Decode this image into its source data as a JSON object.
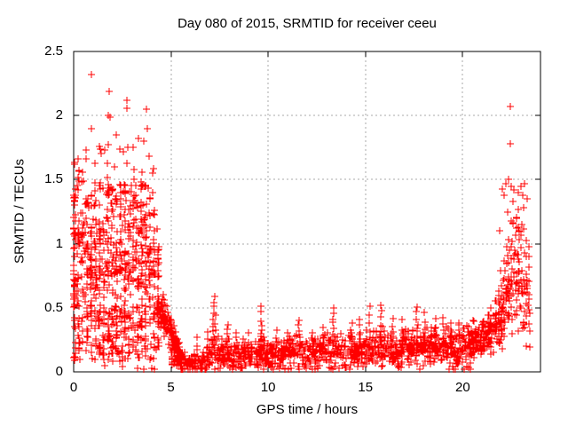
{
  "chart_data": {
    "type": "scatter",
    "title": "Day 080 of 2015, SRMTID for receiver ceeu",
    "xlabel": "GPS time / hours",
    "ylabel": "SRMTID / TECUs",
    "xlim": [
      0,
      24
    ],
    "ylim": [
      0,
      2.5
    ],
    "xticks": [
      0,
      5,
      10,
      15,
      20
    ],
    "xtick_labels": [
      "0",
      "5",
      "10",
      "15",
      "20"
    ],
    "yticks": [
      0,
      0.5,
      1,
      1.5,
      2,
      2.5
    ],
    "ytick_labels": [
      "0",
      "0.5",
      "1",
      "1.5",
      "2",
      "2.5"
    ],
    "grid": true,
    "grid_color": "#a8a8a8",
    "axis_color": "#000000",
    "marker": {
      "glyph": "plus",
      "color": "#ff0000",
      "size": 9
    },
    "data_description": "SRMTID scatter: turbulent 0-4.4h (0.1-1.5 TECU, peaks to 2.32), decay funnel 4.3-5.6h, quiet band 5-20.6h (~0.05-0.3 with spikes to 0.5-0.59), rise 20.5-23.4h to ~0.8 mean with tops near 1.5 and outliers 2.07/1.78 at 22.5h",
    "generator": {
      "seed": 20150080,
      "storm": {
        "count": 780,
        "x_range": [
          0.0,
          4.38
        ],
        "column_step": 0.215,
        "column_jitter": 0.055,
        "column_frac": 0.6,
        "mix_low": [
          0.08,
          0.52
        ],
        "p_low": 0.3,
        "mid_base": 0.35,
        "mid_span": 0.9,
        "p_mid": 0.48,
        "high1": [
          1.08,
          1.5
        ],
        "p_high1": 0.19,
        "high2": [
          1.5,
          1.82
        ]
      },
      "zero_column": {
        "count": 24,
        "x_range": [
          0.0,
          0.08
        ],
        "y_range": [
          0.55,
          1.45
        ]
      },
      "funnel": {
        "count": 150,
        "x_range": [
          4.3,
          5.55
        ],
        "mean_start": 0.55,
        "mean_end": 0.12,
        "spread_start": 0.18,
        "spread_end": 0.05,
        "floor": 0.03
      },
      "quiet": {
        "count": 1150,
        "x_range": [
          5.0,
          20.6
        ],
        "floor": 0.02,
        "mean_profile": [
          [
            5.0,
            0.11
          ],
          [
            5.5,
            0.08
          ],
          [
            6.0,
            0.07
          ],
          [
            6.6,
            0.08
          ],
          [
            7.0,
            0.11
          ],
          [
            7.3,
            0.16
          ],
          [
            7.7,
            0.12
          ],
          [
            8.1,
            0.15
          ],
          [
            8.6,
            0.13
          ],
          [
            9.1,
            0.12
          ],
          [
            9.6,
            0.15
          ],
          [
            10.1,
            0.12
          ],
          [
            10.6,
            0.13
          ],
          [
            11.1,
            0.14
          ],
          [
            11.6,
            0.15
          ],
          [
            12.1,
            0.13
          ],
          [
            12.6,
            0.15
          ],
          [
            13.1,
            0.16
          ],
          [
            13.5,
            0.18
          ],
          [
            14.0,
            0.17
          ],
          [
            14.5,
            0.16
          ],
          [
            15.0,
            0.17
          ],
          [
            15.5,
            0.17
          ],
          [
            16.0,
            0.18
          ],
          [
            16.5,
            0.17
          ],
          [
            17.0,
            0.18
          ],
          [
            17.5,
            0.19
          ],
          [
            18.0,
            0.18
          ],
          [
            18.5,
            0.18
          ],
          [
            19.0,
            0.18
          ],
          [
            19.5,
            0.19
          ],
          [
            20.0,
            0.19
          ],
          [
            20.6,
            0.22
          ]
        ],
        "spikes": [
          [
            6.35,
            0.27,
            4
          ],
          [
            6.9,
            0.3,
            4
          ],
          [
            7.2,
            0.55,
            9
          ],
          [
            7.28,
            0.44,
            5
          ],
          [
            7.9,
            0.36,
            6
          ],
          [
            8.35,
            0.3,
            4
          ],
          [
            9.0,
            0.3,
            3
          ],
          [
            9.65,
            0.5,
            8
          ],
          [
            10.4,
            0.32,
            4
          ],
          [
            11.0,
            0.3,
            3
          ],
          [
            11.6,
            0.42,
            6
          ],
          [
            12.3,
            0.3,
            4
          ],
          [
            12.85,
            0.35,
            4
          ],
          [
            13.35,
            0.5,
            8
          ],
          [
            14.3,
            0.38,
            5
          ],
          [
            14.7,
            0.42,
            5
          ],
          [
            15.2,
            0.5,
            6
          ],
          [
            15.8,
            0.52,
            7
          ],
          [
            16.4,
            0.42,
            5
          ],
          [
            16.9,
            0.4,
            4
          ],
          [
            17.65,
            0.52,
            7
          ],
          [
            18.05,
            0.45,
            5
          ],
          [
            18.6,
            0.4,
            4
          ],
          [
            19.0,
            0.42,
            5
          ],
          [
            19.4,
            0.36,
            5
          ],
          [
            19.8,
            0.38,
            4
          ],
          [
            20.3,
            0.35,
            4
          ]
        ]
      },
      "evening": {
        "count": 310,
        "x_range": [
          20.5,
          23.45
        ],
        "floor": 0.05,
        "column_step": 0.13,
        "column_jitter": 0.04,
        "column_frac": 0.55,
        "mean_profile": [
          [
            20.5,
            0.22
          ],
          [
            20.9,
            0.25
          ],
          [
            21.3,
            0.3
          ],
          [
            21.7,
            0.38
          ],
          [
            22.0,
            0.5
          ],
          [
            22.3,
            0.65
          ],
          [
            22.6,
            0.8
          ],
          [
            22.9,
            0.82
          ],
          [
            23.1,
            0.78
          ],
          [
            23.45,
            0.65
          ]
        ]
      },
      "extra_points": [
        [
          0.91,
          2.32
        ],
        [
          1.83,
          2.19
        ],
        [
          2.74,
          2.12
        ],
        [
          2.74,
          2.06
        ],
        [
          3.76,
          2.05
        ],
        [
          1.78,
          2.0
        ],
        [
          1.88,
          1.99
        ],
        [
          3.79,
          1.9
        ],
        [
          0.91,
          1.9
        ],
        [
          2.2,
          1.85
        ],
        [
          3.35,
          1.82
        ],
        [
          1.32,
          1.76
        ],
        [
          2.56,
          1.72
        ],
        [
          3.9,
          1.68
        ],
        [
          0.62,
          1.66
        ],
        [
          1.08,
          1.63
        ],
        [
          2.08,
          1.6
        ],
        [
          3.12,
          1.58
        ],
        [
          0.25,
          1.52
        ],
        [
          4.05,
          1.55
        ],
        [
          22.47,
          2.07
        ],
        [
          22.47,
          1.78
        ],
        [
          22.05,
          1.43
        ],
        [
          22.15,
          1.38
        ],
        [
          22.22,
          1.47
        ],
        [
          22.35,
          1.5
        ],
        [
          22.5,
          1.45
        ],
        [
          22.6,
          1.33
        ],
        [
          22.85,
          1.4
        ],
        [
          23.0,
          1.45
        ],
        [
          23.1,
          1.38
        ],
        [
          23.2,
          1.47
        ],
        [
          22.3,
          1.25
        ],
        [
          22.75,
          1.2
        ],
        [
          23.15,
          1.28
        ],
        [
          21.9,
          1.1
        ],
        [
          23.3,
          1.35
        ],
        [
          0.03,
          0.12
        ],
        [
          0.05,
          0.35
        ],
        [
          3.3,
          0.03
        ],
        [
          3.6,
          0.02
        ],
        [
          4.0,
          0.03
        ],
        [
          4.15,
          0.02
        ],
        [
          2.5,
          0.04
        ],
        [
          1.6,
          0.05
        ],
        [
          7.25,
          0.59
        ]
      ]
    }
  }
}
